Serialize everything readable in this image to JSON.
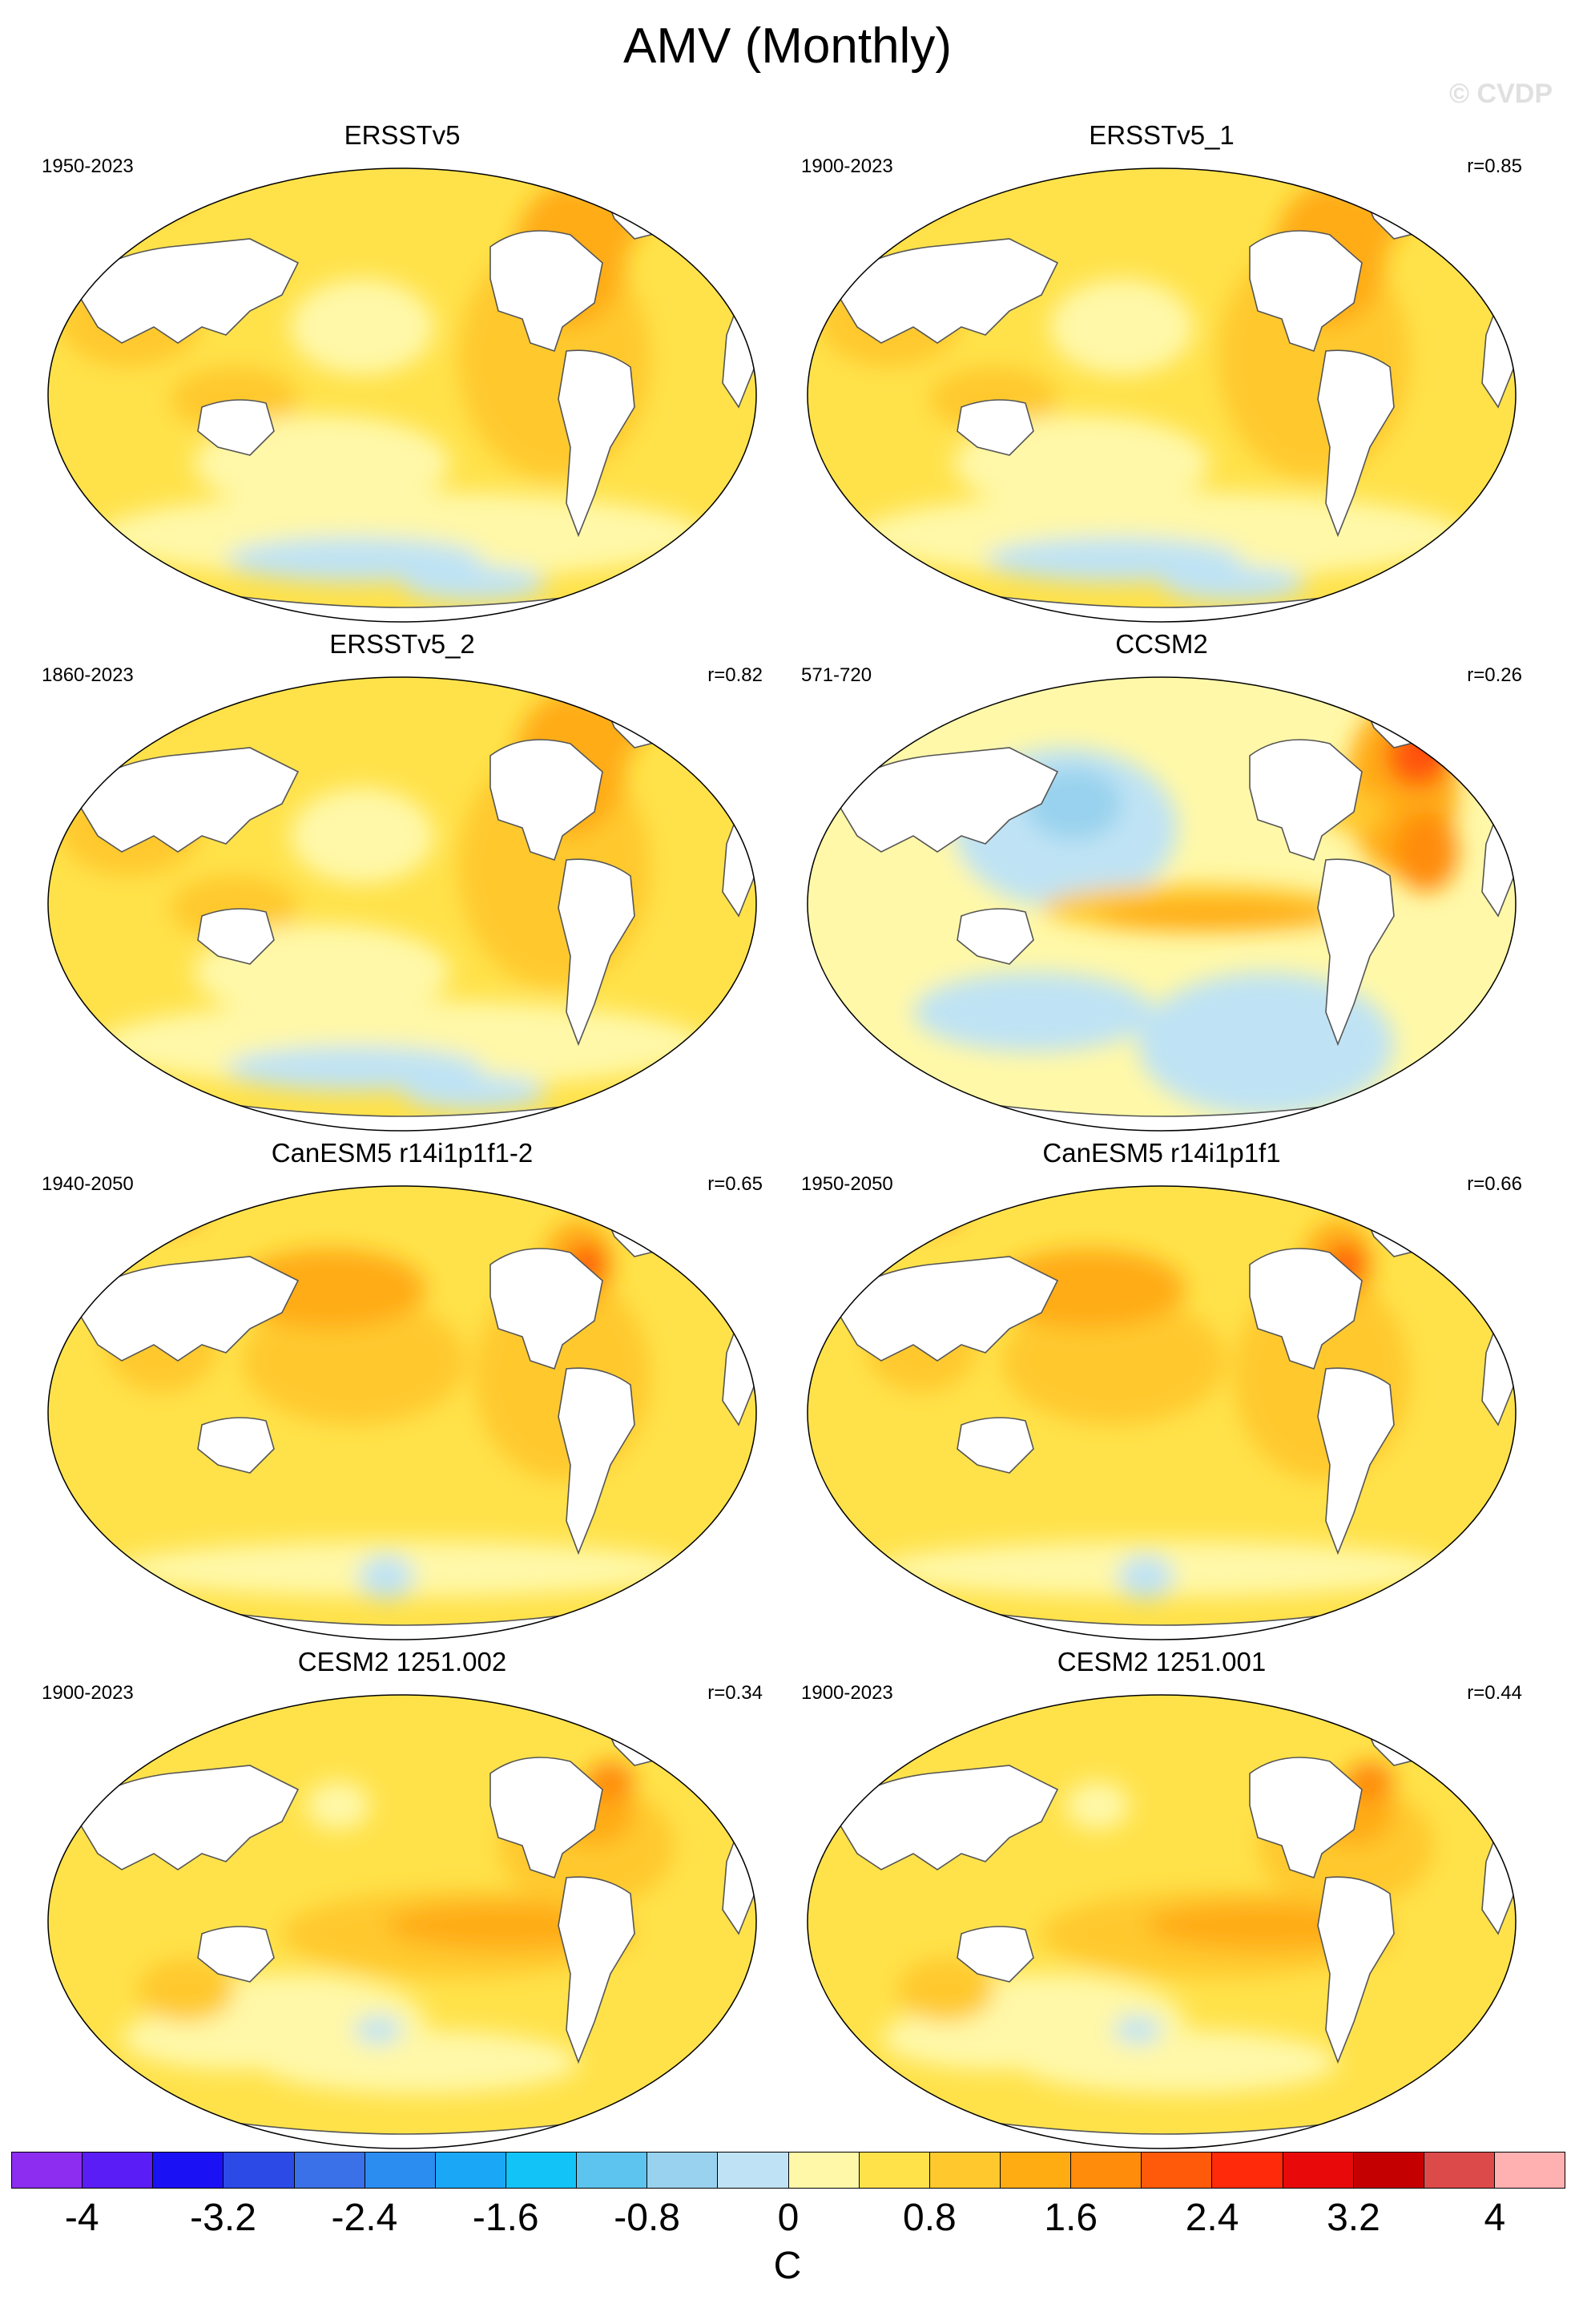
{
  "title": "AMV (Monthly)",
  "watermark": "© CVDP",
  "panels": [
    {
      "title": "ERSSTv5",
      "years": "1950-2023",
      "r": "",
      "scheme": "obs"
    },
    {
      "title": "ERSSTv5_1",
      "years": "1900-2023",
      "r": "r=0.85",
      "scheme": "obs"
    },
    {
      "title": "ERSSTv5_2",
      "years": "1860-2023",
      "r": "r=0.82",
      "scheme": "obs"
    },
    {
      "title": "CCSM2",
      "years": "571-720",
      "r": "r=0.26",
      "scheme": "ccsm"
    },
    {
      "title": "CanESM5 r14i1p1f1-2",
      "years": "1940-2050",
      "r": "r=0.65",
      "scheme": "canesm"
    },
    {
      "title": "CanESM5 r14i1p1f1",
      "years": "1950-2050",
      "r": "r=0.66",
      "scheme": "canesm"
    },
    {
      "title": "CESM2 1251.002",
      "years": "1900-2023",
      "r": "r=0.34",
      "scheme": "cesm"
    },
    {
      "title": "CESM2 1251.001",
      "years": "1900-2023",
      "r": "r=0.44",
      "scheme": "cesm"
    }
  ],
  "colorbar": {
    "unit": "C",
    "ticks": [
      "-4",
      "-3.2",
      "-2.4",
      "-1.6",
      "-0.8",
      "0",
      "0.8",
      "1.6",
      "2.4",
      "3.2",
      "4"
    ],
    "colors": [
      "#8c2df0",
      "#5a1df5",
      "#1a12f5",
      "#2c4ae6",
      "#3a70e8",
      "#2b8df0",
      "#1aa8f6",
      "#12c3f8",
      "#5cc4ee",
      "#98d2ee",
      "#bfe3f4",
      "#fff8a8",
      "#ffe24a",
      "#ffc92e",
      "#ffac12",
      "#ff8c0a",
      "#ff5a0a",
      "#ff2a0a",
      "#e80a0a",
      "#c40000",
      "#dc4a4a",
      "#ffb0b0"
    ]
  }
}
